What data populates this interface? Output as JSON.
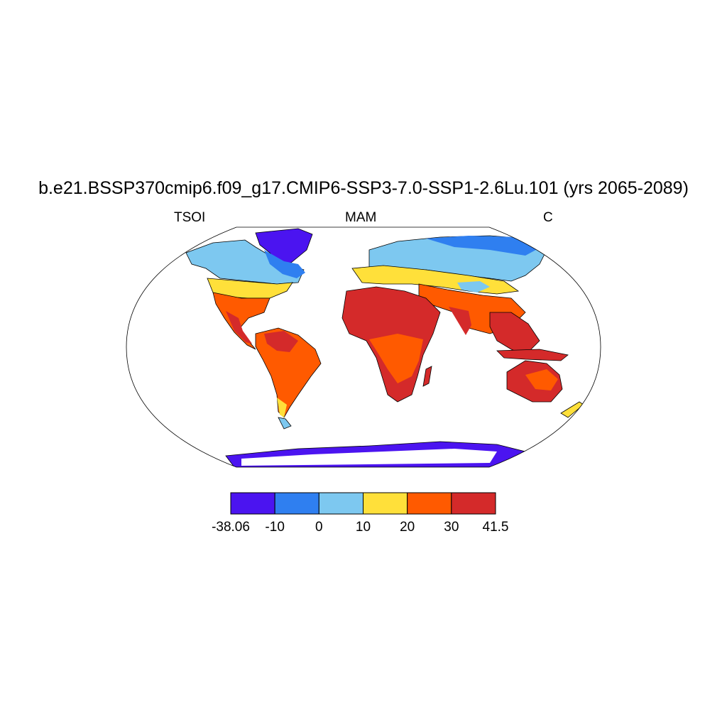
{
  "title": "b.e21.BSSP370cmip6.f09_g17.CMIP6-SSP3-7.0-SSP1-2.6Lu.101 (yrs 2065-2089)",
  "variable": "TSOI",
  "season": "MAM",
  "units": "C",
  "colorbar": {
    "ticks": [
      "-38.06",
      "-10",
      "0",
      "10",
      "20",
      "30",
      "41.5"
    ],
    "colors": [
      "#4b14f0",
      "#2f7ff0",
      "#7dc8f0",
      "#ffe03a",
      "#ff5a00",
      "#d42a2a"
    ]
  },
  "map": {
    "projection": "robinson",
    "ocean_color": "#ffffff",
    "coast_color": "#000000"
  }
}
